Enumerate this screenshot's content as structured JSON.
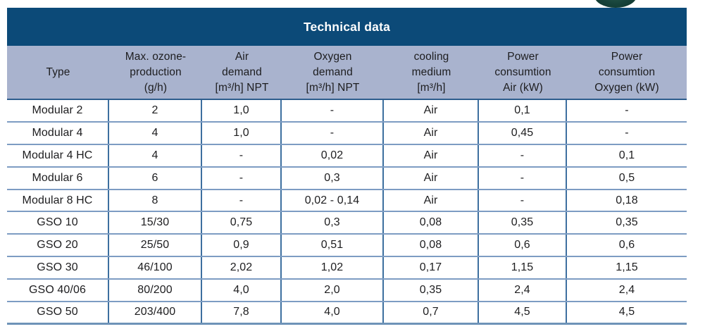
{
  "table": {
    "title": "Technical data",
    "columns": [
      {
        "id": "type",
        "label": "Type"
      },
      {
        "id": "max_ozone_production",
        "label": "Max. ozone-\nproduction\n(g/h)"
      },
      {
        "id": "air_demand",
        "label": "Air\ndemand\n[m³/h] NPT"
      },
      {
        "id": "oxygen_demand",
        "label": "Oxygen\ndemand\n[m³/h] NPT"
      },
      {
        "id": "cooling_medium",
        "label": "cooling\nmedium\n[m³/h]"
      },
      {
        "id": "power_consumtion_air",
        "label": "Power\nconsumtion\nAir (kW)"
      },
      {
        "id": "power_consumtion_oxygen",
        "label": "Power\nconsumtion\nOxygen (kW)"
      }
    ],
    "rows": [
      [
        "Modular 2",
        "2",
        "1,0",
        "-",
        "Air",
        "0,1",
        "-"
      ],
      [
        "Modular 4",
        "4",
        "1,0",
        "-",
        "Air",
        "0,45",
        "-"
      ],
      [
        "Modular 4 HC",
        "4",
        "-",
        "0,02",
        "Air",
        "-",
        "0,1"
      ],
      [
        "Modular 6",
        "6",
        "-",
        "0,3",
        "Air",
        "-",
        "0,5"
      ],
      [
        "Modular 8 HC",
        "8",
        "-",
        "0,02 - 0,14",
        "Air",
        "-",
        "0,18"
      ],
      [
        "GSO 10",
        "15/30",
        "0,75",
        "0,3",
        "0,08",
        "0,35",
        "0,35"
      ],
      [
        "GSO 20",
        "25/50",
        "0,9",
        "0,51",
        "0,08",
        "0,6",
        "0,6"
      ],
      [
        "GSO 30",
        "46/100",
        "2,02",
        "1,02",
        "0,17",
        "1,15",
        "1,15"
      ],
      [
        "GSO 40/06",
        "80/200",
        "4,0",
        "2,0",
        "0,35",
        "2,4",
        "2,4"
      ],
      [
        "GSO 50",
        "203/400",
        "7,8",
        "4,0",
        "0,7",
        "4,5",
        "4,5"
      ]
    ]
  },
  "colors": {
    "title_band_bg": "#0c4a78",
    "header_band_bg": "#a9b3ce",
    "row_border": "#7d9cc3",
    "column_border": "#3d6f9f",
    "header_divider": "#2d5d8d",
    "bottom_border": "#6e93b8",
    "text": "#1d1d1f",
    "title_text": "#ffffff",
    "logo_green": "#16423a"
  }
}
